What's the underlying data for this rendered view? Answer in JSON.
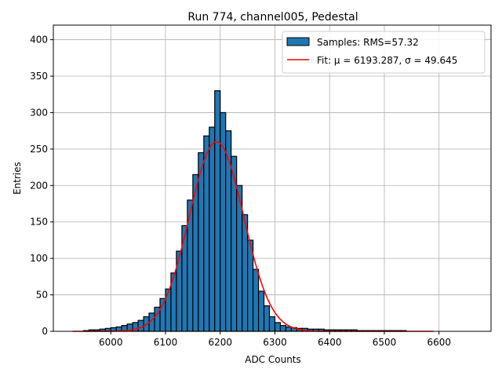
{
  "chart_data": {
    "type": "bar",
    "title": "Run 774, channel005, Pedestal",
    "xlabel": "ADC Counts",
    "ylabel": "Entries",
    "xlim": [
      5895,
      6695
    ],
    "ylim": [
      0,
      420
    ],
    "xticks": [
      6000,
      6100,
      6200,
      6300,
      6400,
      6500,
      6600
    ],
    "yticks": [
      0,
      50,
      100,
      150,
      200,
      250,
      300,
      350,
      400
    ],
    "grid": true,
    "legend_position": "top-right",
    "histogram": {
      "name": "Samples: RMS=57.32",
      "color": "#1f77b4",
      "edge_color": "#000000",
      "bins": [
        5930,
        5940,
        5950,
        5960,
        5970,
        5980,
        5990,
        6000,
        6010,
        6020,
        6030,
        6040,
        6050,
        6060,
        6070,
        6080,
        6090,
        6100,
        6110,
        6120,
        6130,
        6140,
        6150,
        6160,
        6170,
        6180,
        6190,
        6200,
        6210,
        6220,
        6230,
        6240,
        6250,
        6260,
        6270,
        6280,
        6290,
        6300,
        6310,
        6320,
        6330,
        6340,
        6350,
        6360,
        6370,
        6380,
        6390,
        6400,
        6410,
        6420,
        6430,
        6440,
        6450,
        6460,
        6470,
        6480,
        6490,
        6500,
        6510,
        6520,
        6530,
        6540,
        6550,
        6560,
        6570,
        6580,
        6590
      ],
      "counts": [
        0,
        0,
        1,
        2,
        2,
        3,
        4,
        5,
        6,
        8,
        10,
        12,
        15,
        20,
        25,
        33,
        45,
        58,
        80,
        110,
        145,
        180,
        215,
        245,
        268,
        280,
        330,
        300,
        275,
        240,
        200,
        160,
        125,
        85,
        55,
        35,
        20,
        12,
        8,
        6,
        5,
        4,
        4,
        3,
        3,
        3,
        2,
        2,
        2,
        2,
        2,
        2,
        1,
        1,
        1,
        1,
        1,
        1,
        1,
        1,
        1,
        0,
        0,
        0,
        0,
        0,
        0
      ]
    },
    "fit": {
      "name": "Fit: μ = 6193.287, σ = 49.645",
      "color": "#ff0000",
      "mu": 6193.287,
      "sigma": 49.645,
      "amplitude": 260,
      "x_range": [
        5930,
        6590
      ]
    }
  }
}
